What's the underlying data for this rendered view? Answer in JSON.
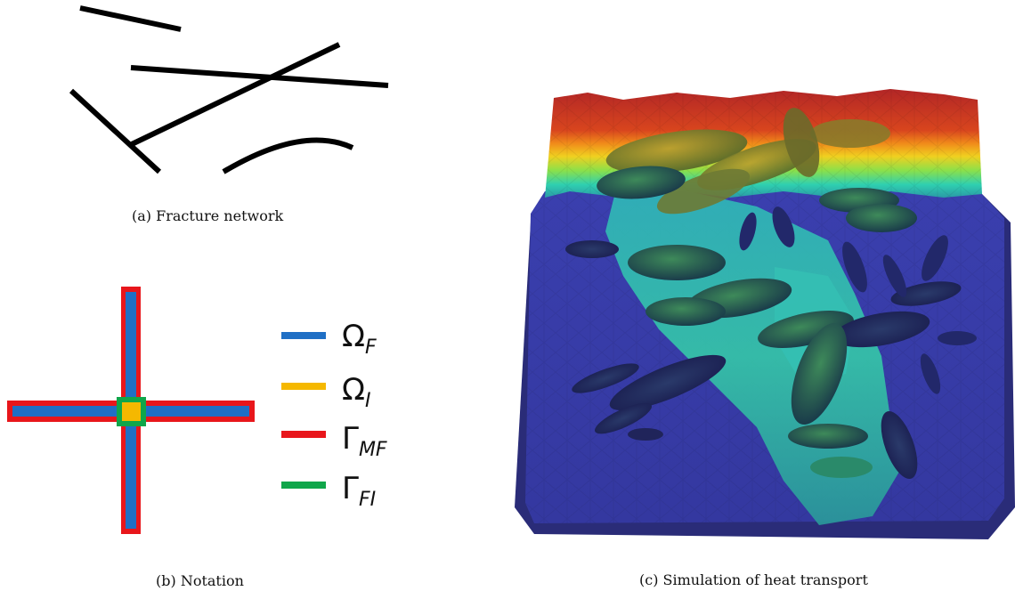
{
  "captions": {
    "a": "(a) Fracture network",
    "b": "(b) Notation",
    "c": "(c) Simulation of heat transport"
  },
  "legend": [
    {
      "symbol": "Ω",
      "sub": "F",
      "color": "#1f6fc5"
    },
    {
      "symbol": "Ω",
      "sub": "I",
      "color": "#f5b800"
    },
    {
      "symbol": "Γ",
      "sub": "MF",
      "color": "#e8161b"
    },
    {
      "symbol": "Γ",
      "sub": "FI",
      "color": "#10a64a"
    }
  ],
  "colors": {
    "fracture_line": "#000000",
    "omega_f": "#1f6fc5",
    "omega_i": "#f5b800",
    "gamma_mf": "#e8161b",
    "gamma_fi": "#10a64a",
    "heat_hot": "#b22626",
    "heat_mid": "#f0d020",
    "heat_warm": "#2fd0c0",
    "heat_cold": "#3a3ea8"
  }
}
